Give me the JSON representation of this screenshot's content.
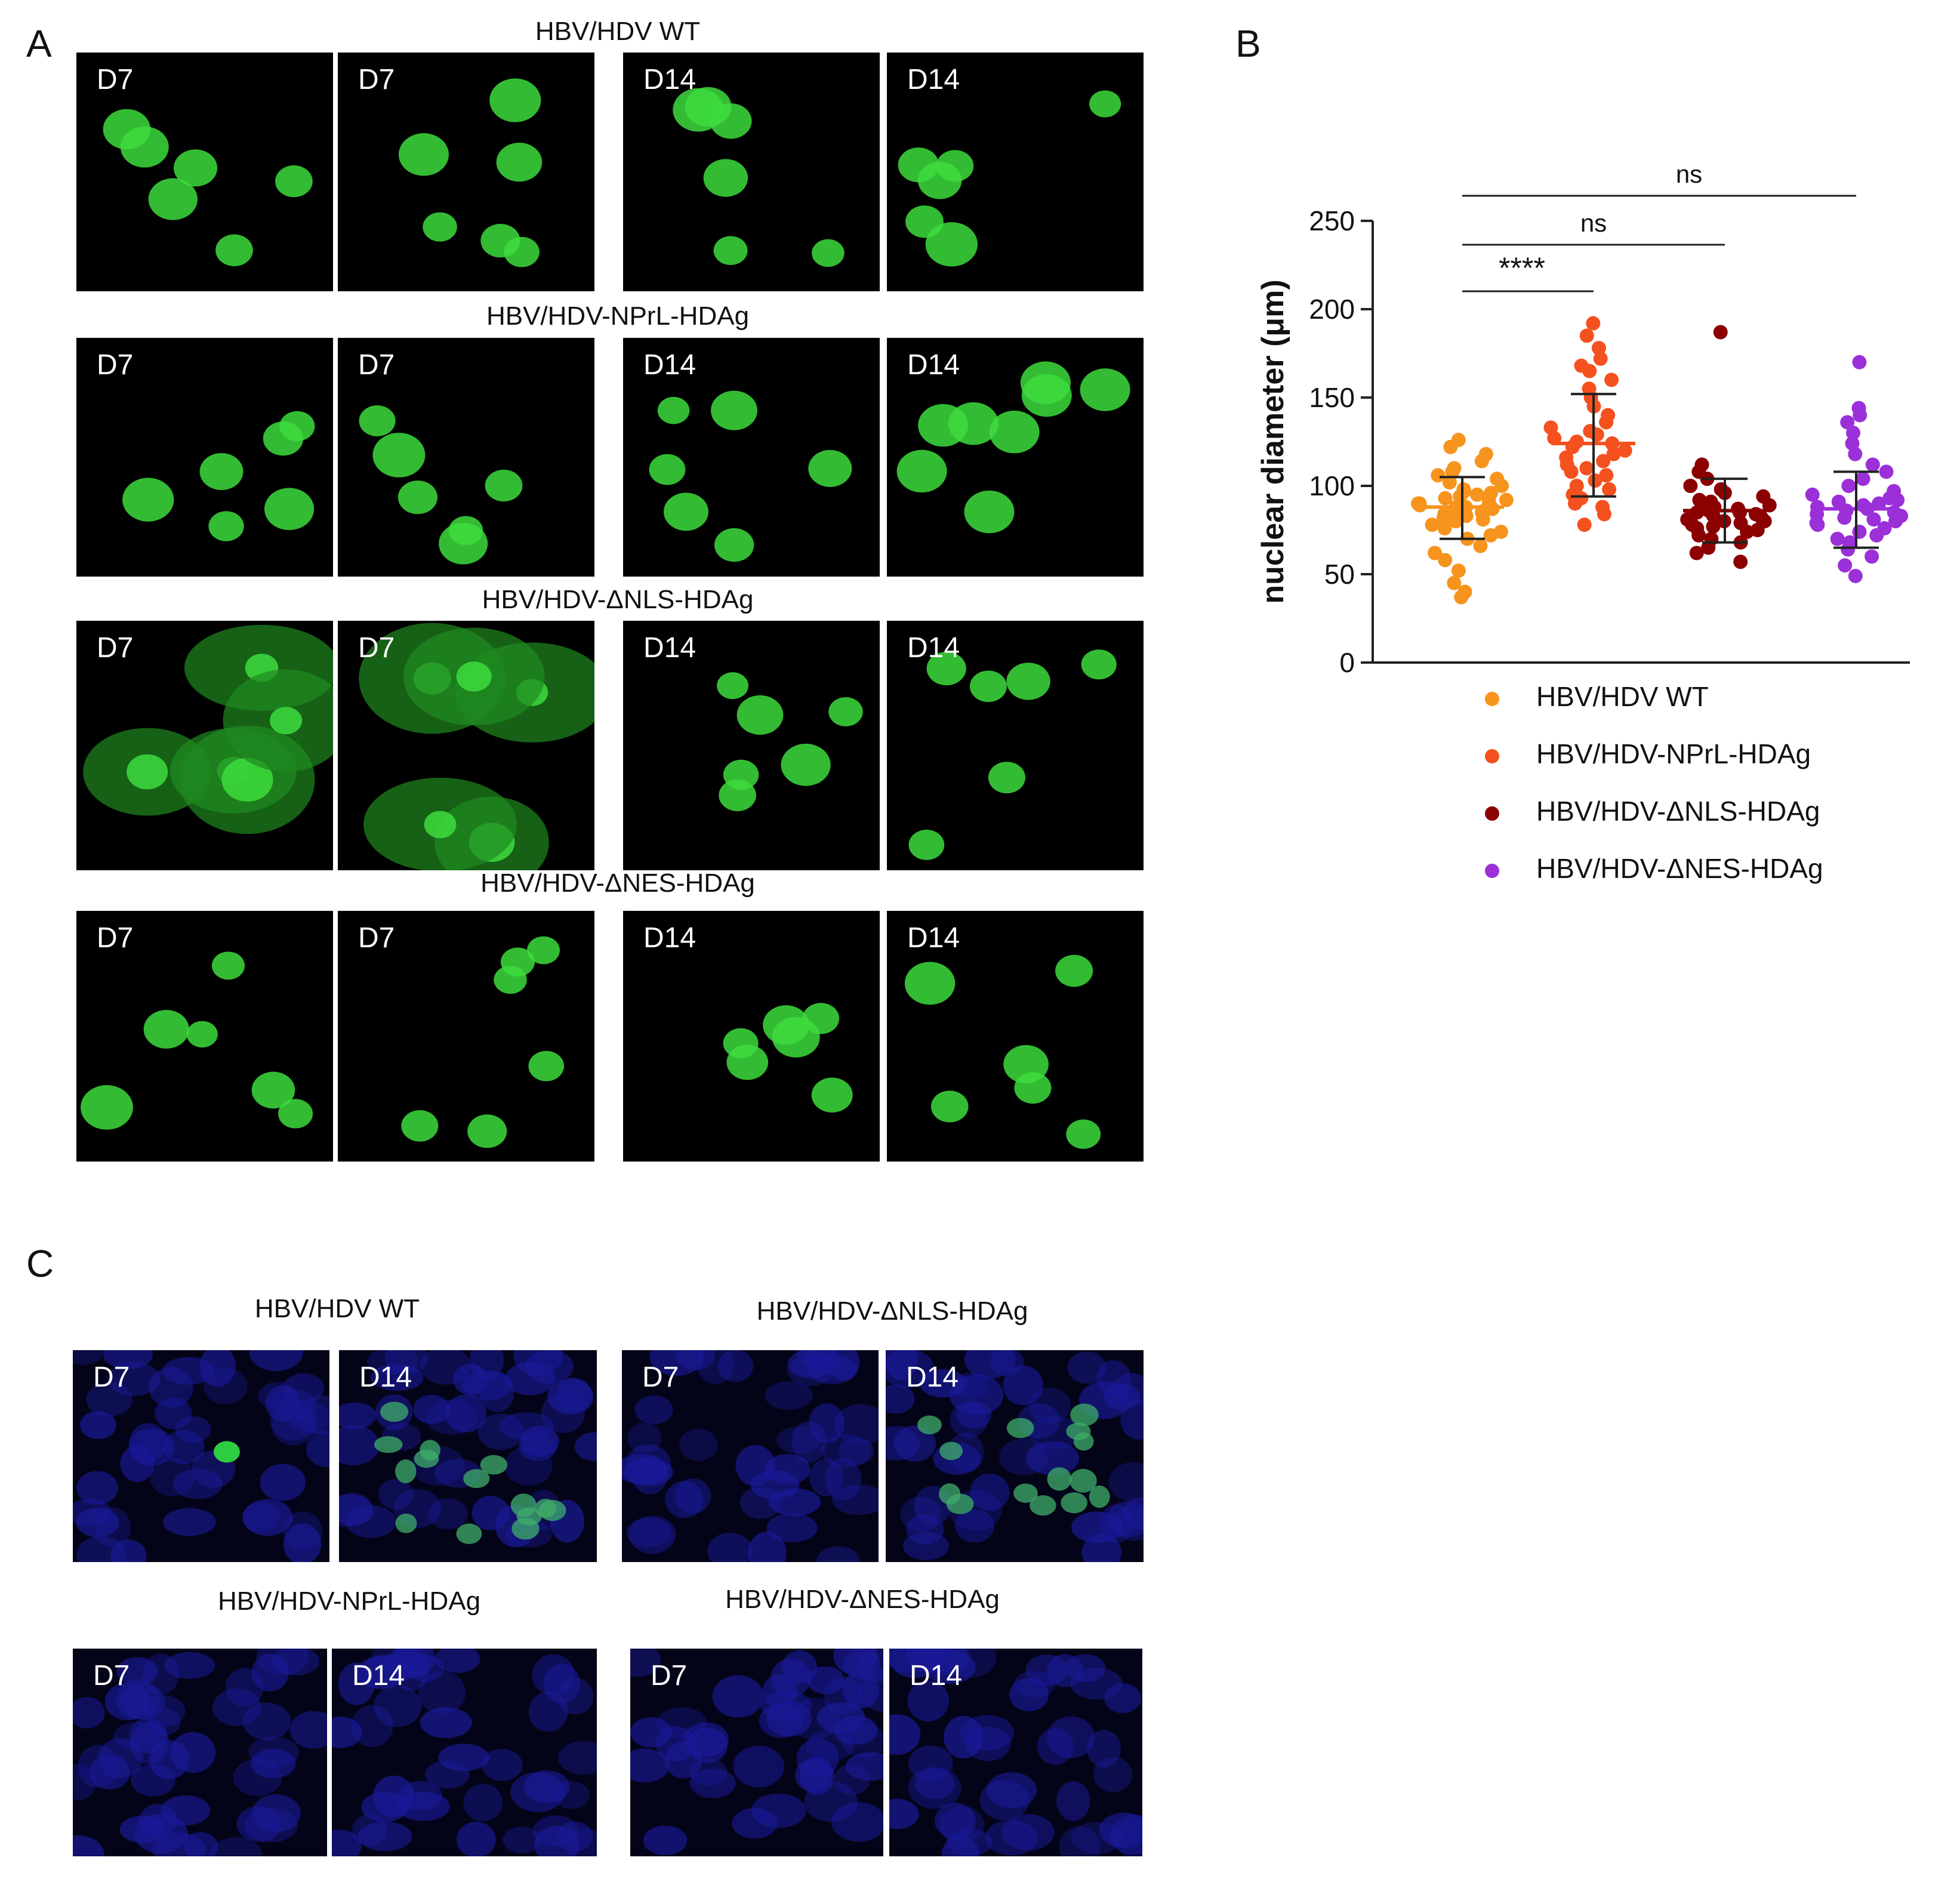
{
  "panels": {
    "A": {
      "letter": "A",
      "groups": [
        {
          "title": "HBV/HDV WT",
          "images": [
            "D7",
            "D7",
            "D14",
            "D14"
          ]
        },
        {
          "title": "HBV/HDV-NPrL-HDAg",
          "images": [
            "D7",
            "D7",
            "D14",
            "D14"
          ]
        },
        {
          "title": "HBV/HDV-ΔNLS-HDAg",
          "images": [
            "D7",
            "D7",
            "D14",
            "D14"
          ]
        },
        {
          "title": "HBV/HDV-ΔNES-HDAg",
          "images": [
            "D7",
            "D7",
            "D14",
            "D14"
          ]
        }
      ]
    },
    "B": {
      "letter": "B"
    },
    "C": {
      "letter": "C",
      "groups": [
        {
          "title": "HBV/HDV WT",
          "images": [
            "D7",
            "D14"
          ]
        },
        {
          "title": "HBV/HDV-ΔNLS-HDAg",
          "images": [
            "D7",
            "D14"
          ]
        },
        {
          "title": "HBV/HDV-NPrL-HDAg",
          "images": [
            "D7",
            "D14"
          ]
        },
        {
          "title": "HBV/HDV-ΔNES-HDAg",
          "images": [
            "D7",
            "D14"
          ]
        }
      ]
    }
  },
  "colors": {
    "fluor_green": "#3ddc3d",
    "dapi_blue": "#1a1a9a",
    "wt": "#f7941d",
    "nprl": "#f4511e",
    "dnls": "#8b0000",
    "dnes": "#9b30d9"
  },
  "chart_data": {
    "type": "scatter",
    "ylabel": "nuclear diameter (μm)",
    "ylim": [
      0,
      250
    ],
    "yticks": [
      0,
      50,
      100,
      150,
      200,
      250
    ],
    "series": [
      {
        "name": "HBV/HDV WT",
        "color": "#f7941d",
        "mean": 88,
        "sd_low": 70,
        "sd_high": 105,
        "values": [
          37,
          40,
          45,
          52,
          58,
          62,
          66,
          70,
          72,
          74,
          76,
          78,
          80,
          81,
          82,
          83,
          84,
          85,
          86,
          86,
          87,
          88,
          88,
          89,
          90,
          90,
          91,
          92,
          93,
          94,
          95,
          96,
          97,
          98,
          100,
          102,
          104,
          106,
          108,
          110,
          114,
          118,
          122,
          126
        ]
      },
      {
        "name": "HBV/HDV-NPrL-HDAg",
        "color": "#f4511e",
        "mean": 124,
        "sd_low": 94,
        "sd_high": 152,
        "values": [
          78,
          84,
          88,
          90,
          93,
          95,
          98,
          100,
          103,
          106,
          108,
          110,
          112,
          114,
          116,
          118,
          120,
          122,
          124,
          125,
          127,
          129,
          131,
          133,
          136,
          140,
          145,
          150,
          155,
          160,
          165,
          168,
          172,
          178,
          185,
          192
        ]
      },
      {
        "name": "HBV/HDV-ΔNLS-HDAg",
        "color": "#8b0000",
        "mean": 86,
        "sd_low": 68,
        "sd_high": 104,
        "values": [
          57,
          62,
          65,
          68,
          70,
          72,
          74,
          75,
          76,
          77,
          78,
          79,
          80,
          80,
          81,
          82,
          83,
          84,
          85,
          85,
          86,
          87,
          88,
          89,
          90,
          91,
          92,
          94,
          96,
          98,
          100,
          104,
          108,
          112,
          187
        ]
      },
      {
        "name": "HBV/HDV-ΔNES-HDAg",
        "color": "#9b30d9",
        "mean": 87,
        "sd_low": 65,
        "sd_high": 108,
        "values": [
          49,
          55,
          60,
          64,
          68,
          70,
          72,
          74,
          76,
          78,
          79,
          80,
          81,
          82,
          83,
          84,
          85,
          86,
          87,
          88,
          89,
          90,
          91,
          92,
          93,
          95,
          97,
          100,
          104,
          108,
          112,
          118,
          124,
          130,
          136,
          140,
          144,
          170
        ]
      }
    ],
    "comparisons": [
      {
        "from": 0,
        "to": 1,
        "label": "****"
      },
      {
        "from": 0,
        "to": 2,
        "label": "ns"
      },
      {
        "from": 0,
        "to": 3,
        "label": "ns"
      }
    ],
    "legend_position": "bottom"
  }
}
